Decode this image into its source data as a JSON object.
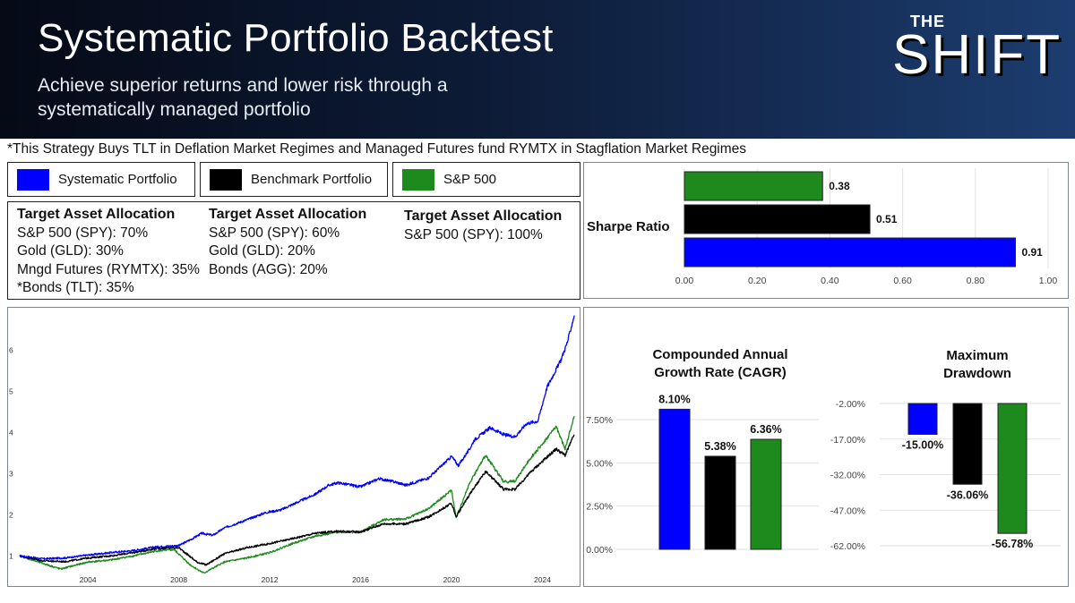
{
  "header": {
    "title": "Systematic Portfolio Backtest",
    "subtitle": "Achieve superior returns and lower risk through a systematically managed portfolio",
    "logo_top": "THE",
    "logo_main": "SHIFT"
  },
  "note": "*This Strategy Buys TLT in Deflation Market Regimes and Managed Futures fund RYMTX in Stagflation Market Regimes",
  "legend": [
    {
      "label": "Systematic Portfolio",
      "color": "#0000ff"
    },
    {
      "label": "Benchmark Portfolio",
      "color": "#000000"
    },
    {
      "label": "S&P 500",
      "color": "#1e8a1e"
    }
  ],
  "allocations": [
    {
      "heading": "Target Asset Allocation",
      "lines": [
        "S&P 500 (SPY): 70%",
        "Gold (GLD): 30%",
        "Mngd Futures (RYMTX): 35%",
        "*Bonds (TLT): 35%"
      ]
    },
    {
      "heading": "Target Asset Allocation",
      "lines": [
        "S&P 500 (SPY): 60%",
        "Gold (GLD): 20%",
        "Bonds (AGG): 20%"
      ]
    },
    {
      "heading": "Target Asset Allocation",
      "lines": [
        "S&P 500 (SPY): 100%"
      ]
    }
  ],
  "chart_data": [
    {
      "type": "bar",
      "orientation": "horizontal",
      "title": "Sharpe Ratio",
      "series": [
        {
          "name": "Systematic Portfolio",
          "value": 0.91,
          "label": "0.91",
          "color": "#0000ff"
        },
        {
          "name": "Benchmark Portfolio",
          "value": 0.51,
          "label": "0.51",
          "color": "#000000"
        },
        {
          "name": "S&P 500",
          "value": 0.38,
          "label": "0.38",
          "color": "#1e8a1e"
        }
      ],
      "xlim": [
        0,
        1.0
      ],
      "xticks": [
        "0.00",
        "0.20",
        "0.40",
        "0.60",
        "0.80",
        "1.00"
      ],
      "grid": true
    },
    {
      "type": "line",
      "title": "",
      "x_ticks": [
        "2004",
        "2008",
        "2012",
        "2016",
        "2020",
        "2024"
      ],
      "y_ticks": [
        "1",
        "2",
        "3",
        "4",
        "5",
        "6"
      ],
      "xlim": [
        2000.8,
        2025.4
      ],
      "ylim": [
        0.55,
        6.95
      ],
      "series": [
        {
          "name": "Systematic Portfolio",
          "color": "#0000ff",
          "points": [
            [
              2001,
              1.0
            ],
            [
              2002,
              0.93
            ],
            [
              2003,
              0.95
            ],
            [
              2004,
              1.02
            ],
            [
              2005,
              1.08
            ],
            [
              2006,
              1.13
            ],
            [
              2007,
              1.22
            ],
            [
              2008,
              1.25
            ],
            [
              2008.6,
              1.42
            ],
            [
              2009,
              1.55
            ],
            [
              2009.5,
              1.5
            ],
            [
              2010,
              1.68
            ],
            [
              2011,
              1.88
            ],
            [
              2011.8,
              2.05
            ],
            [
              2012.5,
              2.12
            ],
            [
              2013,
              2.25
            ],
            [
              2014,
              2.5
            ],
            [
              2014.6,
              2.72
            ],
            [
              2015,
              2.78
            ],
            [
              2016,
              2.68
            ],
            [
              2016.8,
              2.88
            ],
            [
              2017.5,
              2.8
            ],
            [
              2018,
              2.72
            ],
            [
              2019,
              2.9
            ],
            [
              2020,
              3.42
            ],
            [
              2020.3,
              3.2
            ],
            [
              2020.8,
              3.6
            ],
            [
              2021,
              3.82
            ],
            [
              2021.7,
              4.12
            ],
            [
              2022.3,
              3.95
            ],
            [
              2022.8,
              3.9
            ],
            [
              2023.3,
              4.22
            ],
            [
              2023.8,
              4.28
            ],
            [
              2024.2,
              5.1
            ],
            [
              2024.8,
              5.75
            ],
            [
              2025.1,
              6.2
            ],
            [
              2025.4,
              6.85
            ]
          ]
        },
        {
          "name": "Benchmark Portfolio",
          "color": "#000000",
          "points": [
            [
              2001,
              1.0
            ],
            [
              2002,
              0.88
            ],
            [
              2003,
              0.86
            ],
            [
              2004,
              0.95
            ],
            [
              2005,
              1.0
            ],
            [
              2006,
              1.08
            ],
            [
              2007,
              1.18
            ],
            [
              2008,
              1.2
            ],
            [
              2008.8,
              0.85
            ],
            [
              2009.2,
              0.78
            ],
            [
              2010,
              1.05
            ],
            [
              2011,
              1.2
            ],
            [
              2012,
              1.3
            ],
            [
              2013,
              1.42
            ],
            [
              2014,
              1.55
            ],
            [
              2015,
              1.6
            ],
            [
              2016,
              1.58
            ],
            [
              2017,
              1.78
            ],
            [
              2018,
              1.78
            ],
            [
              2019,
              1.95
            ],
            [
              2020,
              2.28
            ],
            [
              2020.2,
              1.95
            ],
            [
              2020.8,
              2.5
            ],
            [
              2021.5,
              3.05
            ],
            [
              2022.3,
              2.62
            ],
            [
              2022.8,
              2.62
            ],
            [
              2023.5,
              3.05
            ],
            [
              2024,
              3.3
            ],
            [
              2024.6,
              3.6
            ],
            [
              2025,
              3.45
            ],
            [
              2025.4,
              3.95
            ]
          ]
        },
        {
          "name": "S&P 500",
          "color": "#1e8a1e",
          "points": [
            [
              2001,
              1.0
            ],
            [
              2002,
              0.82
            ],
            [
              2002.8,
              0.68
            ],
            [
              2003.5,
              0.78
            ],
            [
              2004,
              0.85
            ],
            [
              2005,
              0.9
            ],
            [
              2006,
              1.0
            ],
            [
              2007,
              1.12
            ],
            [
              2007.8,
              1.15
            ],
            [
              2008.5,
              0.78
            ],
            [
              2009.1,
              0.58
            ],
            [
              2010,
              0.85
            ],
            [
              2011,
              0.95
            ],
            [
              2012,
              1.08
            ],
            [
              2013,
              1.3
            ],
            [
              2014,
              1.48
            ],
            [
              2015,
              1.58
            ],
            [
              2016,
              1.58
            ],
            [
              2017,
              1.88
            ],
            [
              2018,
              1.9
            ],
            [
              2019,
              2.15
            ],
            [
              2020,
              2.6
            ],
            [
              2020.2,
              1.92
            ],
            [
              2020.8,
              2.78
            ],
            [
              2021.5,
              3.45
            ],
            [
              2022.3,
              2.8
            ],
            [
              2022.8,
              2.82
            ],
            [
              2023.5,
              3.4
            ],
            [
              2024,
              3.72
            ],
            [
              2024.6,
              4.15
            ],
            [
              2025,
              3.6
            ],
            [
              2025.4,
              4.4
            ]
          ]
        }
      ]
    },
    {
      "type": "bar",
      "title": "Compounded Annual Growth Rate (CAGR)",
      "title_lines": [
        "Compounded Annual",
        "Growth Rate (CAGR)"
      ],
      "series": [
        {
          "name": "Systematic Portfolio",
          "value": 8.1,
          "label": "8.10%",
          "color": "#0000ff"
        },
        {
          "name": "Benchmark Portfolio",
          "value": 5.38,
          "label": "5.38%",
          "color": "#000000"
        },
        {
          "name": "S&P 500",
          "value": 6.36,
          "label": "6.36%",
          "color": "#1e8a1e"
        }
      ],
      "ylim": [
        0,
        10
      ],
      "yticks": [
        {
          "v": 0,
          "t": "0.00%"
        },
        {
          "v": 2.5,
          "t": "2.50%"
        },
        {
          "v": 5.0,
          "t": "5.00%"
        },
        {
          "v": 7.5,
          "t": "7.50%"
        }
      ],
      "grid": true
    },
    {
      "type": "bar",
      "title": "Maximum Drawdown",
      "title_lines": [
        "Maximum",
        "Drawdown"
      ],
      "series": [
        {
          "name": "Systematic Portfolio",
          "value": -15.0,
          "label": "-15.00%",
          "color": "#0000ff"
        },
        {
          "name": "Benchmark Portfolio",
          "value": -36.06,
          "label": "-36.06%",
          "color": "#000000"
        },
        {
          "name": "S&P 500",
          "value": -56.78,
          "label": "-56.78%",
          "color": "#1e8a1e"
        }
      ],
      "ylim": [
        -62,
        -2
      ],
      "yticks": [
        {
          "v": -2,
          "t": "-2.00%"
        },
        {
          "v": -17,
          "t": "-17.00%"
        },
        {
          "v": -32,
          "t": "-32.00%"
        },
        {
          "v": -47,
          "t": "-47.00%"
        },
        {
          "v": -62,
          "t": "-62.00%"
        }
      ],
      "grid": true
    }
  ]
}
